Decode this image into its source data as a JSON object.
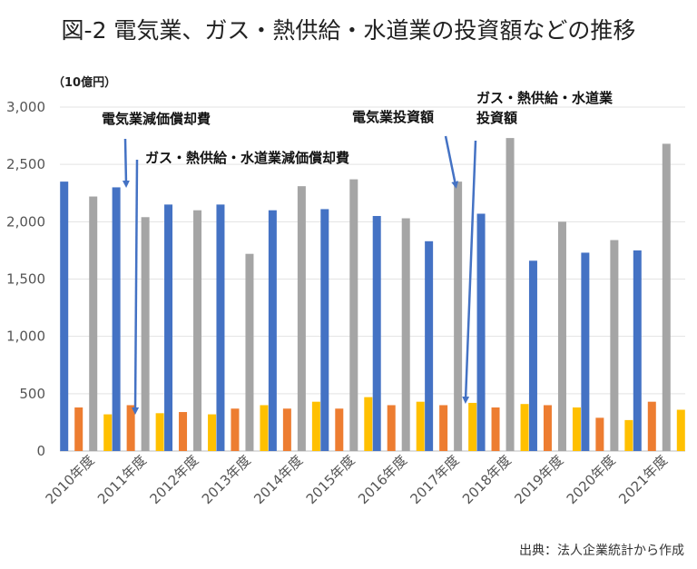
{
  "chart_data": {
    "type": "bar",
    "title": "図-2 電気業、ガス・熱供給・水道業の投資額などの推移",
    "unit_label": "（10億円）",
    "source": "出典：法人企業統計から作成",
    "categories": [
      "2010年度",
      "2011年度",
      "2012年度",
      "2013年度",
      "2014年度",
      "2015年度",
      "2016年度",
      "2017年度",
      "2018年度",
      "2019年度",
      "2020年度",
      "2021年度"
    ],
    "ylim": [
      0,
      3000
    ],
    "yticks": [
      0,
      500,
      1000,
      1500,
      2000,
      2500,
      3000
    ],
    "ytick_labels": [
      "0",
      "500",
      "1,000",
      "1,500",
      "2,000",
      "2,500",
      "3,000"
    ],
    "grid": true,
    "series": [
      {
        "name": "電気業減価償却費",
        "color": "#4472C4",
        "values": [
          2350,
          2300,
          2150,
          2150,
          2100,
          2110,
          2050,
          1830,
          2070,
          1660,
          1730,
          1750
        ]
      },
      {
        "name": "ガス・熱供給・水道業減価償却費",
        "color": "#ED7D31",
        "values": [
          380,
          400,
          340,
          370,
          370,
          370,
          400,
          400,
          380,
          400,
          290,
          430
        ]
      },
      {
        "name": "電気業投資額",
        "color": "#A5A5A5",
        "values": [
          2220,
          2040,
          2100,
          1720,
          2310,
          2370,
          2030,
          2350,
          2730,
          2000,
          1840,
          2680
        ]
      },
      {
        "name": "ガス・熱供給・水道業投資額",
        "color": "#FFC000",
        "values": [
          320,
          330,
          320,
          400,
          430,
          470,
          430,
          420,
          410,
          380,
          270,
          360
        ]
      }
    ],
    "annotations": [
      {
        "text": "電気業減価償却費"
      },
      {
        "text": "ガス・熱供給・水道業減価償却費"
      },
      {
        "text": "電気業投資額"
      },
      {
        "text": "ガス・熱供給・水道業\n投資額"
      }
    ]
  }
}
